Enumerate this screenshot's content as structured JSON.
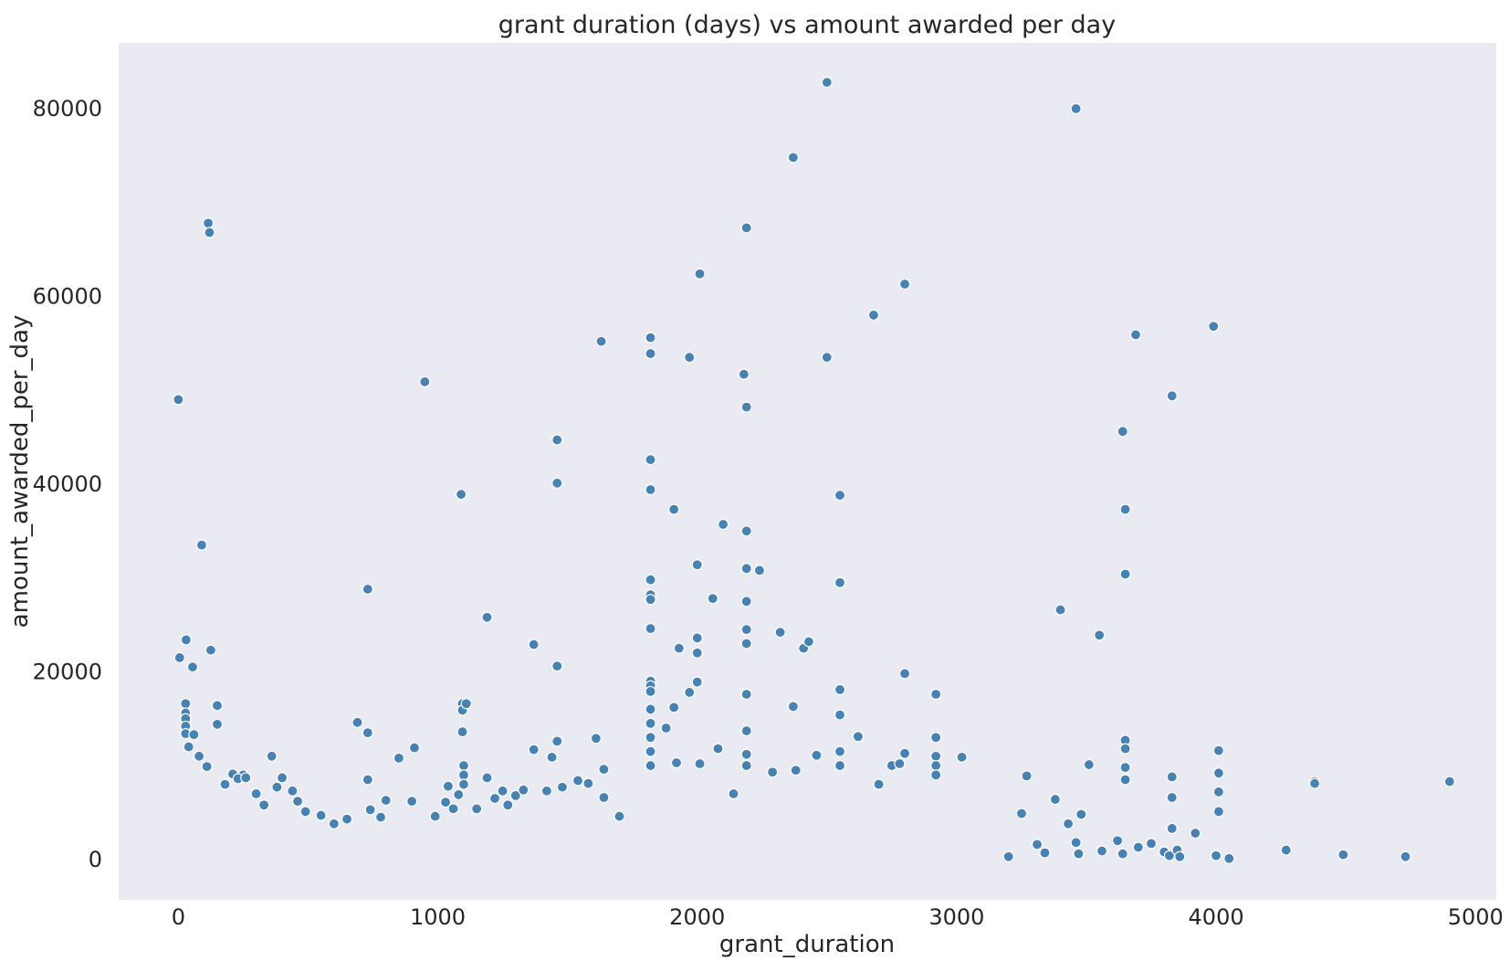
{
  "chart_data": {
    "type": "scatter",
    "title": "grant duration (days) vs amount awarded per day",
    "xlabel": "grant_duration",
    "ylabel": "amount_awarded_per_day",
    "xlim": [
      -230,
      5080
    ],
    "ylim": [
      -4300,
      87000
    ],
    "xticks": [
      0,
      1000,
      2000,
      3000,
      4000,
      5000
    ],
    "yticks": [
      0,
      20000,
      40000,
      60000,
      80000
    ],
    "grid": false,
    "background": "#eaeaf2",
    "point_color": "#4682b4",
    "series": [
      {
        "points": [
          [
            0,
            49000
          ],
          [
            5,
            21500
          ],
          [
            30,
            23400
          ],
          [
            55,
            20500
          ],
          [
            90,
            33500
          ],
          [
            115,
            67800
          ],
          [
            120,
            66800
          ],
          [
            125,
            22300
          ],
          [
            150,
            16400
          ],
          [
            150,
            14400
          ],
          [
            28,
            16600
          ],
          [
            28,
            15600
          ],
          [
            28,
            15000
          ],
          [
            28,
            14200
          ],
          [
            28,
            13400
          ],
          [
            60,
            13300
          ],
          [
            80,
            11000
          ],
          [
            40,
            12000
          ],
          [
            110,
            9900
          ],
          [
            210,
            9100
          ],
          [
            250,
            9000
          ],
          [
            230,
            8600
          ],
          [
            260,
            8700
          ],
          [
            180,
            8000
          ],
          [
            300,
            7000
          ],
          [
            330,
            5800
          ],
          [
            360,
            11000
          ],
          [
            380,
            7700
          ],
          [
            400,
            8700
          ],
          [
            440,
            7300
          ],
          [
            460,
            6200
          ],
          [
            490,
            5100
          ],
          [
            550,
            4700
          ],
          [
            600,
            3800
          ],
          [
            650,
            4300
          ],
          [
            690,
            14600
          ],
          [
            730,
            13500
          ],
          [
            730,
            28800
          ],
          [
            730,
            8500
          ],
          [
            740,
            5300
          ],
          [
            780,
            4500
          ],
          [
            800,
            6300
          ],
          [
            850,
            10800
          ],
          [
            900,
            6200
          ],
          [
            910,
            11900
          ],
          [
            950,
            50900
          ],
          [
            990,
            4600
          ],
          [
            1030,
            6100
          ],
          [
            1040,
            7800
          ],
          [
            1060,
            5400
          ],
          [
            1080,
            6900
          ],
          [
            1090,
            38900
          ],
          [
            1095,
            16600
          ],
          [
            1095,
            15900
          ],
          [
            1095,
            13600
          ],
          [
            1110,
            16600
          ],
          [
            1100,
            10000
          ],
          [
            1100,
            9000
          ],
          [
            1100,
            8000
          ],
          [
            1150,
            5400
          ],
          [
            1190,
            25800
          ],
          [
            1190,
            8700
          ],
          [
            1220,
            6500
          ],
          [
            1250,
            7300
          ],
          [
            1270,
            5800
          ],
          [
            1300,
            6800
          ],
          [
            1330,
            7400
          ],
          [
            1370,
            11700
          ],
          [
            1370,
            22900
          ],
          [
            1420,
            7300
          ],
          [
            1440,
            10900
          ],
          [
            1460,
            44700
          ],
          [
            1460,
            40100
          ],
          [
            1460,
            20600
          ],
          [
            1460,
            12600
          ],
          [
            1480,
            7700
          ],
          [
            1540,
            8400
          ],
          [
            1580,
            8100
          ],
          [
            1610,
            12900
          ],
          [
            1630,
            55200
          ],
          [
            1640,
            9600
          ],
          [
            1640,
            6600
          ],
          [
            1700,
            4600
          ],
          [
            1820,
            55600
          ],
          [
            1820,
            53900
          ],
          [
            1820,
            42600
          ],
          [
            1820,
            39400
          ],
          [
            1820,
            29800
          ],
          [
            1820,
            28200
          ],
          [
            1820,
            27700
          ],
          [
            1820,
            24600
          ],
          [
            1820,
            19000
          ],
          [
            1820,
            18500
          ],
          [
            1820,
            17900
          ],
          [
            1820,
            16000
          ],
          [
            1820,
            14500
          ],
          [
            1820,
            13000
          ],
          [
            1820,
            11500
          ],
          [
            1820,
            10000
          ],
          [
            1880,
            14000
          ],
          [
            1910,
            37300
          ],
          [
            1910,
            16200
          ],
          [
            1920,
            10300
          ],
          [
            1930,
            22500
          ],
          [
            1970,
            53500
          ],
          [
            1970,
            17800
          ],
          [
            2000,
            31400
          ],
          [
            2000,
            23600
          ],
          [
            2000,
            22000
          ],
          [
            2000,
            18900
          ],
          [
            2010,
            62400
          ],
          [
            2010,
            10200
          ],
          [
            2060,
            27800
          ],
          [
            2080,
            11800
          ],
          [
            2100,
            35700
          ],
          [
            2140,
            7000
          ],
          [
            2180,
            51700
          ],
          [
            2190,
            48200
          ],
          [
            2190,
            67300
          ],
          [
            2190,
            35000
          ],
          [
            2190,
            31000
          ],
          [
            2190,
            27500
          ],
          [
            2190,
            24500
          ],
          [
            2190,
            23000
          ],
          [
            2190,
            17600
          ],
          [
            2190,
            13700
          ],
          [
            2190,
            11200
          ],
          [
            2190,
            10000
          ],
          [
            2240,
            30800
          ],
          [
            2290,
            9300
          ],
          [
            2320,
            24200
          ],
          [
            2370,
            74800
          ],
          [
            2370,
            16300
          ],
          [
            2380,
            9500
          ],
          [
            2410,
            22500
          ],
          [
            2430,
            23200
          ],
          [
            2460,
            11100
          ],
          [
            2500,
            82800
          ],
          [
            2500,
            53500
          ],
          [
            2550,
            38800
          ],
          [
            2550,
            29500
          ],
          [
            2550,
            18100
          ],
          [
            2550,
            15400
          ],
          [
            2550,
            11500
          ],
          [
            2550,
            10000
          ],
          [
            2620,
            13100
          ],
          [
            2680,
            58000
          ],
          [
            2700,
            8000
          ],
          [
            2750,
            10000
          ],
          [
            2780,
            10200
          ],
          [
            2800,
            61300
          ],
          [
            2800,
            19800
          ],
          [
            2800,
            11300
          ],
          [
            2920,
            17600
          ],
          [
            2920,
            13000
          ],
          [
            2920,
            11000
          ],
          [
            2920,
            10000
          ],
          [
            2920,
            9000
          ],
          [
            3020,
            10900
          ],
          [
            3270,
            8900
          ],
          [
            3380,
            6400
          ],
          [
            3400,
            26600
          ],
          [
            3460,
            80000
          ],
          [
            3480,
            4800
          ],
          [
            3510,
            10100
          ],
          [
            3550,
            23900
          ],
          [
            3640,
            45600
          ],
          [
            3650,
            37300
          ],
          [
            3650,
            30400
          ],
          [
            3650,
            12700
          ],
          [
            3650,
            11800
          ],
          [
            3650,
            9800
          ],
          [
            3650,
            8500
          ],
          [
            3690,
            55900
          ],
          [
            3830,
            49400
          ],
          [
            3830,
            8800
          ],
          [
            3830,
            6600
          ],
          [
            3830,
            3300
          ],
          [
            3920,
            2800
          ],
          [
            3990,
            56800
          ],
          [
            4010,
            11600
          ],
          [
            4010,
            9200
          ],
          [
            4010,
            7200
          ],
          [
            4010,
            5100
          ],
          [
            4000,
            400
          ],
          [
            4050,
            100
          ],
          [
            4270,
            1000
          ],
          [
            4380,
            8300
          ],
          [
            4380,
            8100
          ],
          [
            4490,
            500
          ],
          [
            4730,
            300
          ],
          [
            4900,
            8300
          ],
          [
            3200,
            300
          ],
          [
            3250,
            4900
          ],
          [
            3310,
            1600
          ],
          [
            3340,
            700
          ],
          [
            3430,
            3800
          ],
          [
            3460,
            1800
          ],
          [
            3470,
            600
          ],
          [
            3560,
            900
          ],
          [
            3620,
            2000
          ],
          [
            3640,
            600
          ],
          [
            3700,
            1300
          ],
          [
            3750,
            1700
          ],
          [
            3800,
            800
          ],
          [
            3820,
            400
          ],
          [
            3850,
            1000
          ],
          [
            3860,
            300
          ]
        ]
      }
    ]
  }
}
